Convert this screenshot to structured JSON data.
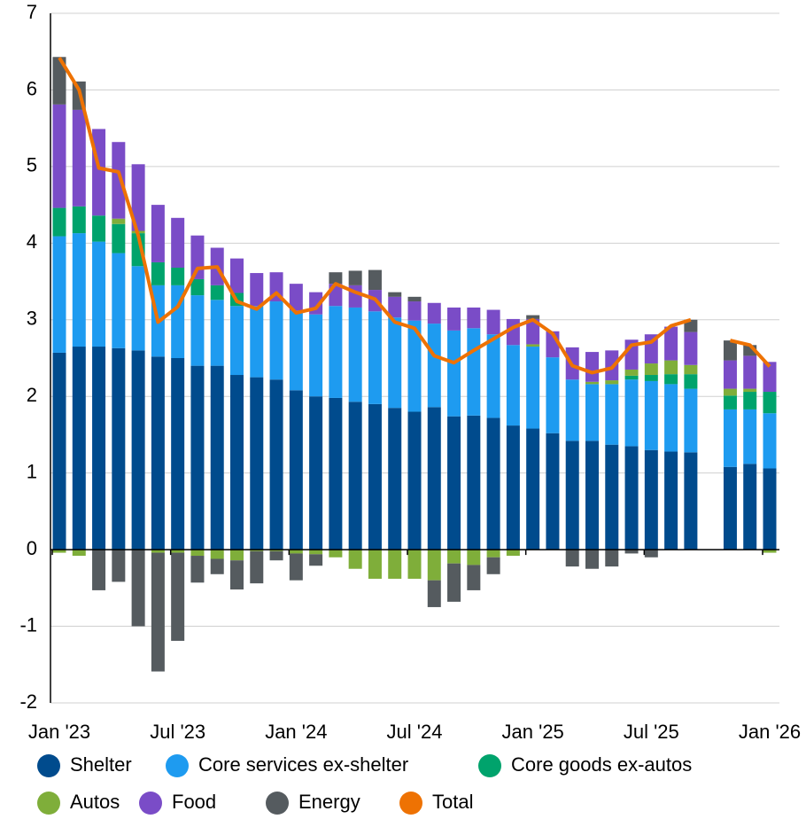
{
  "chart_data": {
    "type": "bar",
    "stacked": true,
    "categories": [
      "Jan '23",
      null,
      null,
      null,
      null,
      null,
      "Jul '23",
      null,
      null,
      null,
      null,
      null,
      "Jan '24",
      null,
      null,
      null,
      null,
      null,
      "Jul '24",
      null,
      null,
      null,
      null,
      null,
      "Jan '25",
      null,
      null,
      null,
      null,
      null,
      "Jul '25",
      null,
      null,
      null,
      null,
      null,
      "Jan '26"
    ],
    "series": [
      {
        "name": "Shelter",
        "color": "#004b8d",
        "values": [
          2.57,
          2.65,
          2.65,
          2.63,
          2.6,
          2.52,
          2.5,
          2.4,
          2.4,
          2.28,
          2.25,
          2.22,
          2.08,
          2.0,
          1.98,
          1.93,
          1.9,
          1.85,
          1.8,
          1.86,
          1.74,
          1.75,
          1.72,
          1.62,
          1.58,
          1.52,
          1.42,
          1.42,
          1.37,
          1.35,
          1.3,
          1.28,
          1.27,
          null,
          1.08,
          1.12,
          1.06
        ]
      },
      {
        "name": "Core services ex-shelter",
        "color": "#1e9bf0",
        "values": [
          1.52,
          1.48,
          1.37,
          1.24,
          1.1,
          0.93,
          0.95,
          0.92,
          0.86,
          0.9,
          0.93,
          1.02,
          1.04,
          1.07,
          1.2,
          1.23,
          1.21,
          1.18,
          1.19,
          1.09,
          1.12,
          1.14,
          1.09,
          1.05,
          1.07,
          0.99,
          0.8,
          0.74,
          0.79,
          0.87,
          0.9,
          0.88,
          0.83,
          null,
          0.75,
          0.71,
          0.72
        ]
      },
      {
        "name": "Core goods ex-autos",
        "color": "#00a36c",
        "values": [
          0.37,
          0.35,
          0.34,
          0.38,
          0.43,
          0.3,
          0.23,
          0.21,
          0.19,
          0.17,
          0,
          0,
          0,
          0,
          0,
          0,
          0,
          0,
          0,
          0,
          0,
          0,
          0,
          0,
          0,
          0,
          0,
          0,
          0,
          0.05,
          0.08,
          0.13,
          0.19,
          null,
          0.18,
          0.23,
          0.28
        ]
      },
      {
        "name": "Autos",
        "color": "#7fae3a",
        "values": [
          -0.04,
          -0.08,
          0,
          0.07,
          0.03,
          -0.04,
          -0.04,
          -0.08,
          -0.12,
          -0.14,
          -0.02,
          -0.02,
          -0.05,
          -0.06,
          -0.1,
          -0.25,
          -0.38,
          -0.38,
          -0.38,
          -0.4,
          -0.18,
          -0.2,
          -0.1,
          -0.08,
          0.03,
          0,
          0,
          0.03,
          0.05,
          0.08,
          0.15,
          0.18,
          0.12,
          null,
          0.09,
          0.04,
          -0.04
        ]
      },
      {
        "name": "Food",
        "color": "#7a4cc7",
        "values": [
          1.35,
          1.26,
          1.13,
          1.0,
          0.87,
          0.75,
          0.65,
          0.57,
          0.49,
          0.45,
          0.43,
          0.38,
          0.35,
          0.29,
          0.29,
          0.29,
          0.28,
          0.27,
          0.25,
          0.27,
          0.3,
          0.27,
          0.32,
          0.34,
          0.33,
          0.34,
          0.42,
          0.39,
          0.39,
          0.39,
          0.38,
          0.44,
          0.43,
          null,
          0.37,
          0.43,
          0.39
        ]
      },
      {
        "name": "Energy",
        "color": "#555b5f",
        "values": [
          0.62,
          0.37,
          -0.53,
          -0.42,
          -1.0,
          -1.55,
          -1.15,
          -0.35,
          -0.2,
          -0.38,
          -0.42,
          -0.12,
          -0.35,
          -0.15,
          0.15,
          0.19,
          0.26,
          0.06,
          0.06,
          -0.35,
          -0.5,
          -0.33,
          -0.22,
          0,
          0.05,
          0,
          -0.22,
          -0.25,
          -0.22,
          -0.05,
          -0.1,
          0,
          0.16,
          null,
          0.26,
          0.14,
          0
        ]
      },
      {
        "name": "Total",
        "color": "#ee7203",
        "type": "line",
        "values": [
          6.42,
          6.0,
          4.98,
          4.93,
          4.1,
          2.97,
          3.17,
          3.67,
          3.69,
          3.24,
          3.14,
          3.35,
          3.09,
          3.15,
          3.47,
          3.36,
          3.27,
          2.97,
          2.89,
          2.53,
          2.44,
          2.6,
          2.75,
          2.9,
          3.0,
          2.82,
          2.4,
          2.31,
          2.37,
          2.67,
          2.71,
          2.92,
          3.0,
          null,
          2.73,
          2.67,
          2.39
        ]
      }
    ],
    "ylim": [
      -2,
      7
    ],
    "yticks": [
      -2,
      -1,
      0,
      1,
      2,
      3,
      4,
      5,
      6,
      7
    ],
    "grid": true
  }
}
